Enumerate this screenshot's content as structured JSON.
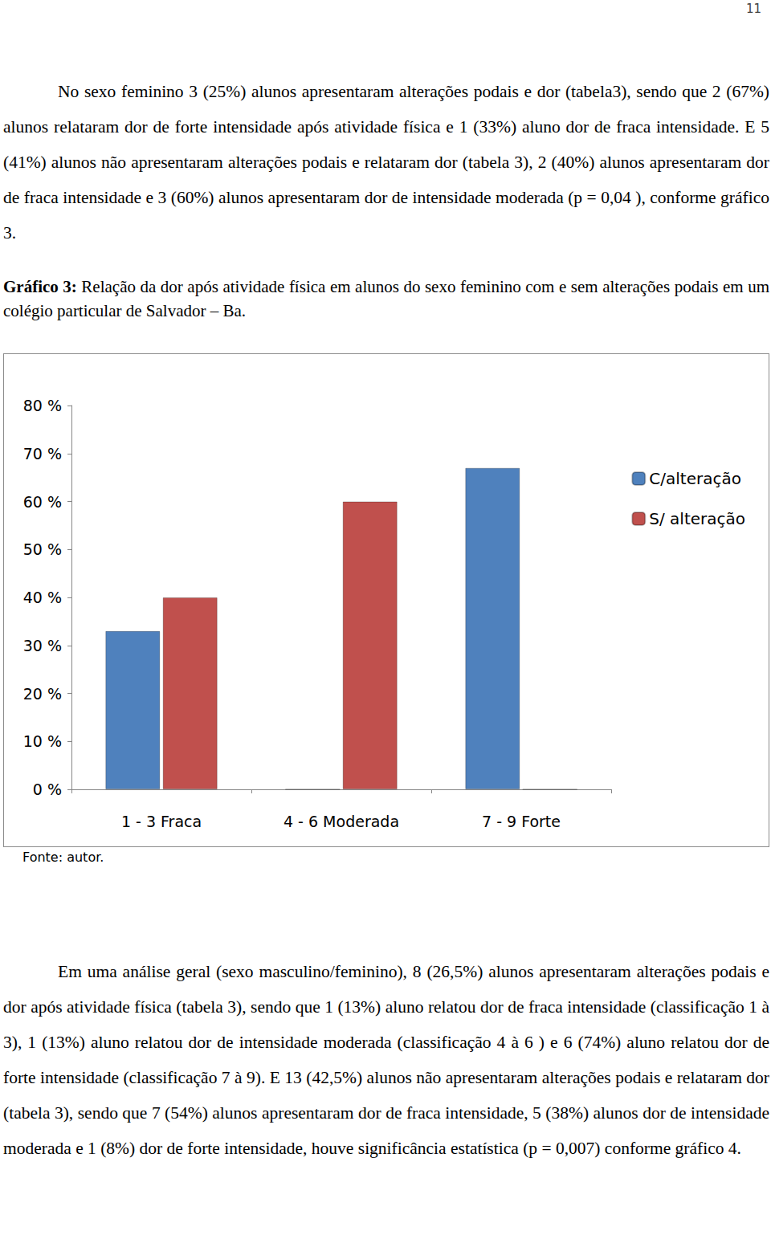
{
  "page_number": "11",
  "paragraphs": [
    "No sexo feminino 3 (25%) alunos apresentaram alterações podais e dor (tabela3), sendo que 2 (67%) alunos relataram dor de forte intensidade após atividade física e 1 (33%) aluno dor de fraca intensidade. E 5 (41%) alunos não apresentaram alterações podais e relataram dor (tabela 3), 2 (40%) alunos apresentaram dor de fraca intensidade e 3 (60%) alunos apresentaram dor de intensidade moderada (p = 0,04 ), conforme gráfico 3.",
    "Em uma análise geral (sexo masculino/feminino), 8 (26,5%) alunos apresentaram alterações podais e dor após atividade física (tabela 3), sendo que 1 (13%) aluno relatou dor de fraca intensidade (classificação 1 à 3), 1 (13%) aluno relatou dor de intensidade moderada (classificação 4 à 6 ) e 6 (74%) aluno relatou dor de forte intensidade (classificação 7 à 9). E 13 (42,5%) alunos não apresentaram alterações podais e relataram dor (tabela 3), sendo que 7 (54%) alunos apresentaram dor de fraca intensidade, 5 (38%) alunos dor de intensidade moderada e 1 (8%) dor de forte intensidade, houve significância estatística (p = 0,007) conforme gráfico 4."
  ],
  "caption": {
    "label": "Gráfico 3:",
    "text": "Relação da dor após atividade física em alunos do sexo feminino com e sem alterações podais em um colégio particular de Salvador – Ba."
  },
  "chart_data": {
    "type": "bar",
    "categories": [
      "1 - 3 Fraca",
      "4 - 6 Moderada",
      "7 - 9 Forte"
    ],
    "series": [
      {
        "name": "C/alteração",
        "color": "#4f81bd",
        "values": [
          33,
          0,
          67
        ]
      },
      {
        "name": "S/ alteração",
        "color": "#c0504d",
        "values": [
          40,
          60,
          0
        ]
      }
    ],
    "ylim": [
      0,
      80
    ],
    "yticks": [
      {
        "value": 0,
        "label": "0 %"
      },
      {
        "value": 10,
        "label": "10 %"
      },
      {
        "value": 20,
        "label": "20 %"
      },
      {
        "value": 30,
        "label": "30 %"
      },
      {
        "value": 40,
        "label": "40 %"
      },
      {
        "value": 50,
        "label": "50 %"
      },
      {
        "value": 60,
        "label": "60 %"
      },
      {
        "value": 70,
        "label": "70 %"
      },
      {
        "value": 80,
        "label": "80 %"
      }
    ],
    "grid": false,
    "legend": "right"
  },
  "source": "Fonte: autor."
}
